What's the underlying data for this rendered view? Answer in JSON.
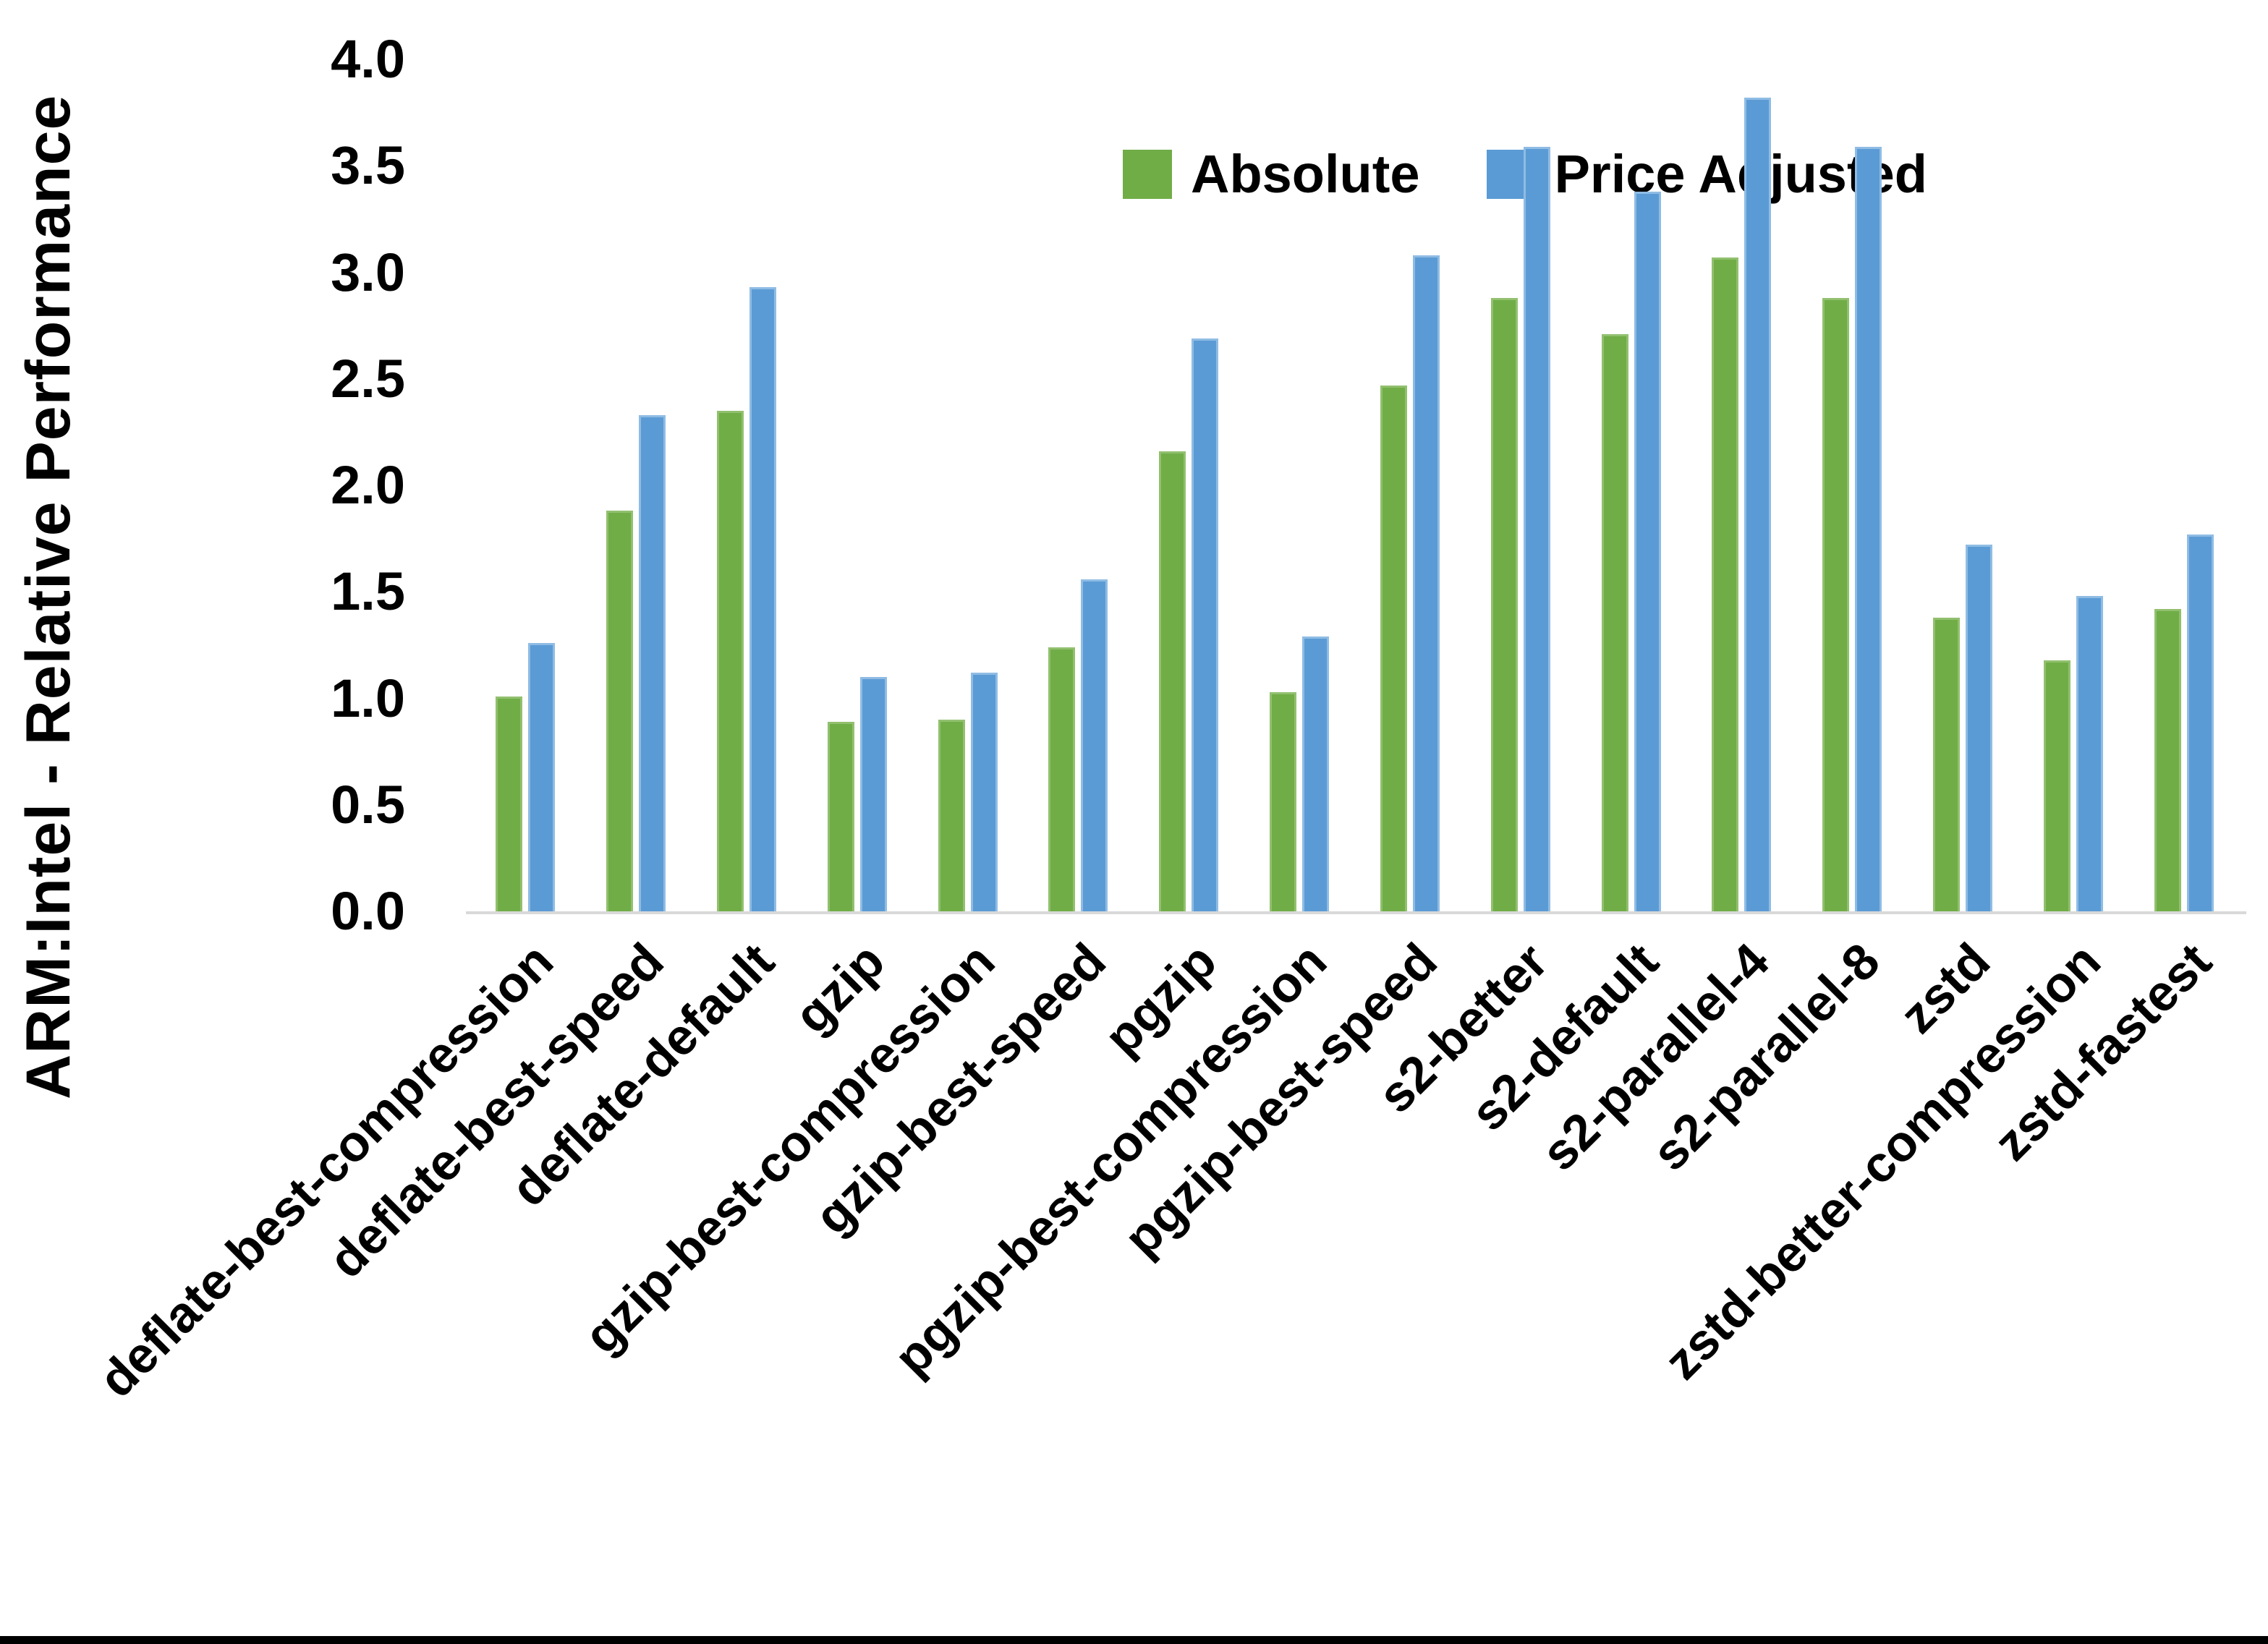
{
  "chart_data": {
    "type": "bar",
    "title": "",
    "ylabel": "ARM:Intel - Relative Performance",
    "xlabel": "",
    "ylim": [
      0.0,
      4.0
    ],
    "ytick_step": 0.5,
    "ytick_labels": [
      "0.0",
      "0.5",
      "1.0",
      "1.5",
      "2.0",
      "2.5",
      "3.0",
      "3.5",
      "4.0"
    ],
    "grid": false,
    "legend_position": "top-center-inside",
    "categories": [
      "deflate-best-compression",
      "deflate-best-speed",
      "deflate-default",
      "gzip",
      "gzip-best-compression",
      "gzip-best-speed",
      "pgzip",
      "pgzip-best-compression",
      "pgzip-best-speed",
      "s2-better",
      "s2-default",
      "s2-parallel-4",
      "s2-parallel-8",
      "zstd",
      "zstd-better-compression",
      "zstd-fastest"
    ],
    "series": [
      {
        "name": "Absolute",
        "color": "#70AD47",
        "edge_color": "#92C06F",
        "values": [
          1.01,
          1.88,
          2.35,
          0.89,
          0.9,
          1.24,
          2.16,
          1.03,
          2.47,
          2.88,
          2.71,
          3.07,
          2.88,
          1.38,
          1.18,
          1.42
        ]
      },
      {
        "name": "Price Adjusted",
        "color": "#5B9BD5",
        "edge_color": "#8FBCE4",
        "values": [
          1.26,
          2.33,
          2.93,
          1.1,
          1.12,
          1.56,
          2.69,
          1.29,
          3.08,
          3.59,
          3.38,
          3.82,
          3.59,
          1.72,
          1.48,
          1.77
        ]
      }
    ],
    "axis_line_color": "#D9D9D9",
    "text_color": "#000000",
    "frame_bottom_color": "#000000"
  }
}
